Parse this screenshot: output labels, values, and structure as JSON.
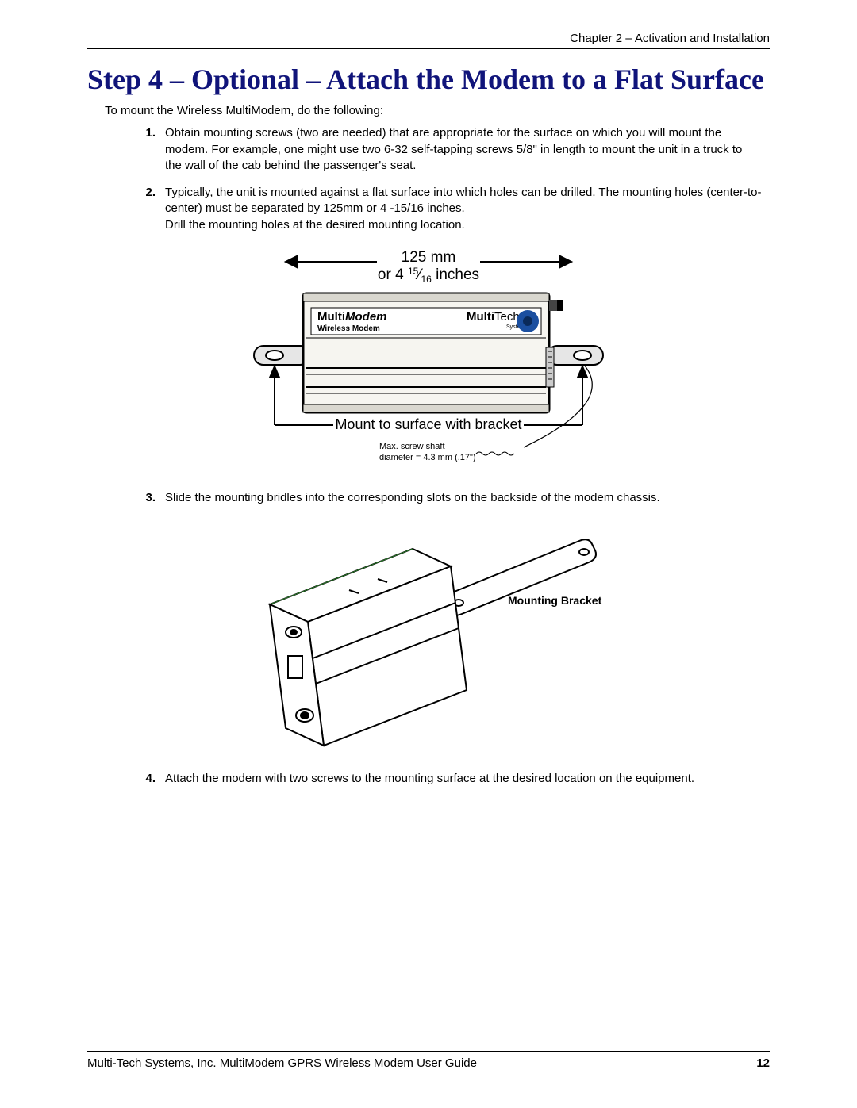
{
  "header": {
    "chapter": "Chapter 2 – Activation and Installation"
  },
  "title": "Step 4 – Optional – Attach the Modem to a Flat Surface",
  "title_color": "#10147a",
  "intro": "To mount the Wireless MultiModem, do the following:",
  "steps": [
    {
      "n": "1.",
      "text": "Obtain mounting screws (two are needed) that are appropriate for the surface on which you will mount the modem. For example, one might use two 6-32 self-tapping screws 5/8\" in length to mount the unit in a truck to the wall of the cab behind the passenger's seat."
    },
    {
      "n": "2.",
      "text": "Typically, the unit is mounted against a flat surface into which holes can be drilled. The mounting holes (center-to-center) must be separated by 125mm or 4 -15/16 inches.\nDrill the mounting holes at the desired mounting location."
    },
    {
      "n": "3.",
      "text": "Slide the mounting bridles into the corresponding slots on the backside of the modem chassis."
    },
    {
      "n": "4.",
      "text": "Attach the modem with two screws to the mounting surface at the desired location on the equipment."
    }
  ],
  "diagram1": {
    "dim_top_line1": "125 mm",
    "dim_top_line2_prefix": "or 4",
    "dim_top_line2_num": "15",
    "dim_top_line2_den": "16",
    "dim_top_line2_suffix": " inches",
    "label_multi": "Multi",
    "label_modem": "Modem",
    "label_wireless": "Wireless Modem",
    "label_multitech1": "Multi",
    "label_multitech2": "Tech",
    "label_systems": "Systems",
    "caption_mount": "Mount to surface with bracket",
    "caption_screw1": "Max. screw shaft",
    "caption_screw2": "diameter = 4.3 mm (.17\")",
    "colors": {
      "body_fill": "#f6f5f0",
      "body_stroke": "#000000",
      "bracket_fill": "#e6e6e6",
      "logo_blue": "#1b4fa0",
      "logo_blue_dark": "#0a2a5a",
      "line": "#000000",
      "edge_green": "#2a7a2a"
    }
  },
  "diagram2": {
    "label_bracket": "Mounting Bracket",
    "colors": {
      "body_fill": "#ffffff",
      "body_stroke": "#000000",
      "edge_green": "#2a7a2a"
    }
  },
  "footer": {
    "left": "Multi-Tech Systems, Inc. MultiModem GPRS Wireless Modem User Guide",
    "page": "12"
  }
}
